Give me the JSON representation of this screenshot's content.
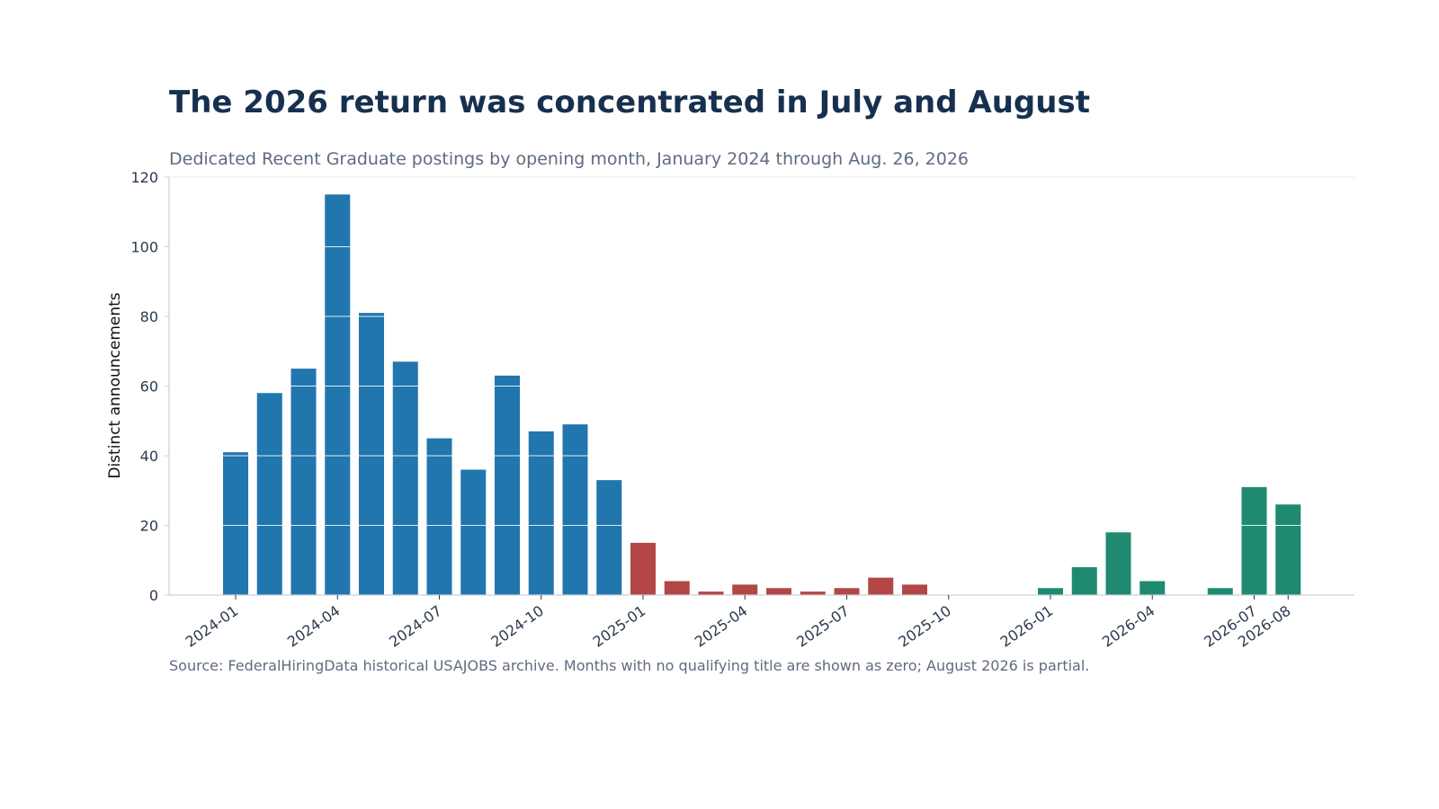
{
  "title": "The 2026 return was concentrated in July and August",
  "subtitle": "Dedicated Recent Graduate postings by opening month, January 2024 through Aug. 26, 2026",
  "source": "Source: FederalHiringData historical USAJOBS archive. Months with no qualifying title are shown as zero; August 2026 is partial.",
  "colors": {
    "2024": "#2176ae",
    "2025": "#b24745",
    "2026": "#1f8a70",
    "grid": "#e6e9ee",
    "axis": "#c9d0da"
  },
  "chart_data": {
    "type": "bar",
    "ylabel": "Distinct announcements",
    "xlabel": "",
    "ylim": [
      0,
      120
    ],
    "yticks": [
      0,
      20,
      40,
      60,
      80,
      100,
      120
    ],
    "grid": true,
    "categories": [
      "2024-01",
      "2024-02",
      "2024-03",
      "2024-04",
      "2024-05",
      "2024-06",
      "2024-07",
      "2024-08",
      "2024-09",
      "2024-10",
      "2024-11",
      "2024-12",
      "2025-01",
      "2025-02",
      "2025-03",
      "2025-04",
      "2025-05",
      "2025-06",
      "2025-07",
      "2025-08",
      "2025-09",
      "2025-10",
      "2025-11",
      "2025-12",
      "2026-01",
      "2026-02",
      "2026-03",
      "2026-04",
      "2026-05",
      "2026-06",
      "2026-07",
      "2026-08"
    ],
    "values": [
      41,
      58,
      65,
      115,
      81,
      67,
      45,
      36,
      63,
      47,
      49,
      33,
      15,
      4,
      1,
      3,
      2,
      1,
      2,
      5,
      3,
      0,
      0,
      0,
      2,
      8,
      18,
      4,
      0,
      2,
      31,
      26
    ],
    "xtick_labels": [
      "2024-01",
      "2024-04",
      "2024-07",
      "2024-10",
      "2025-01",
      "2025-04",
      "2025-07",
      "2025-10",
      "2026-01",
      "2026-04",
      "2026-07",
      "2026-08"
    ]
  }
}
